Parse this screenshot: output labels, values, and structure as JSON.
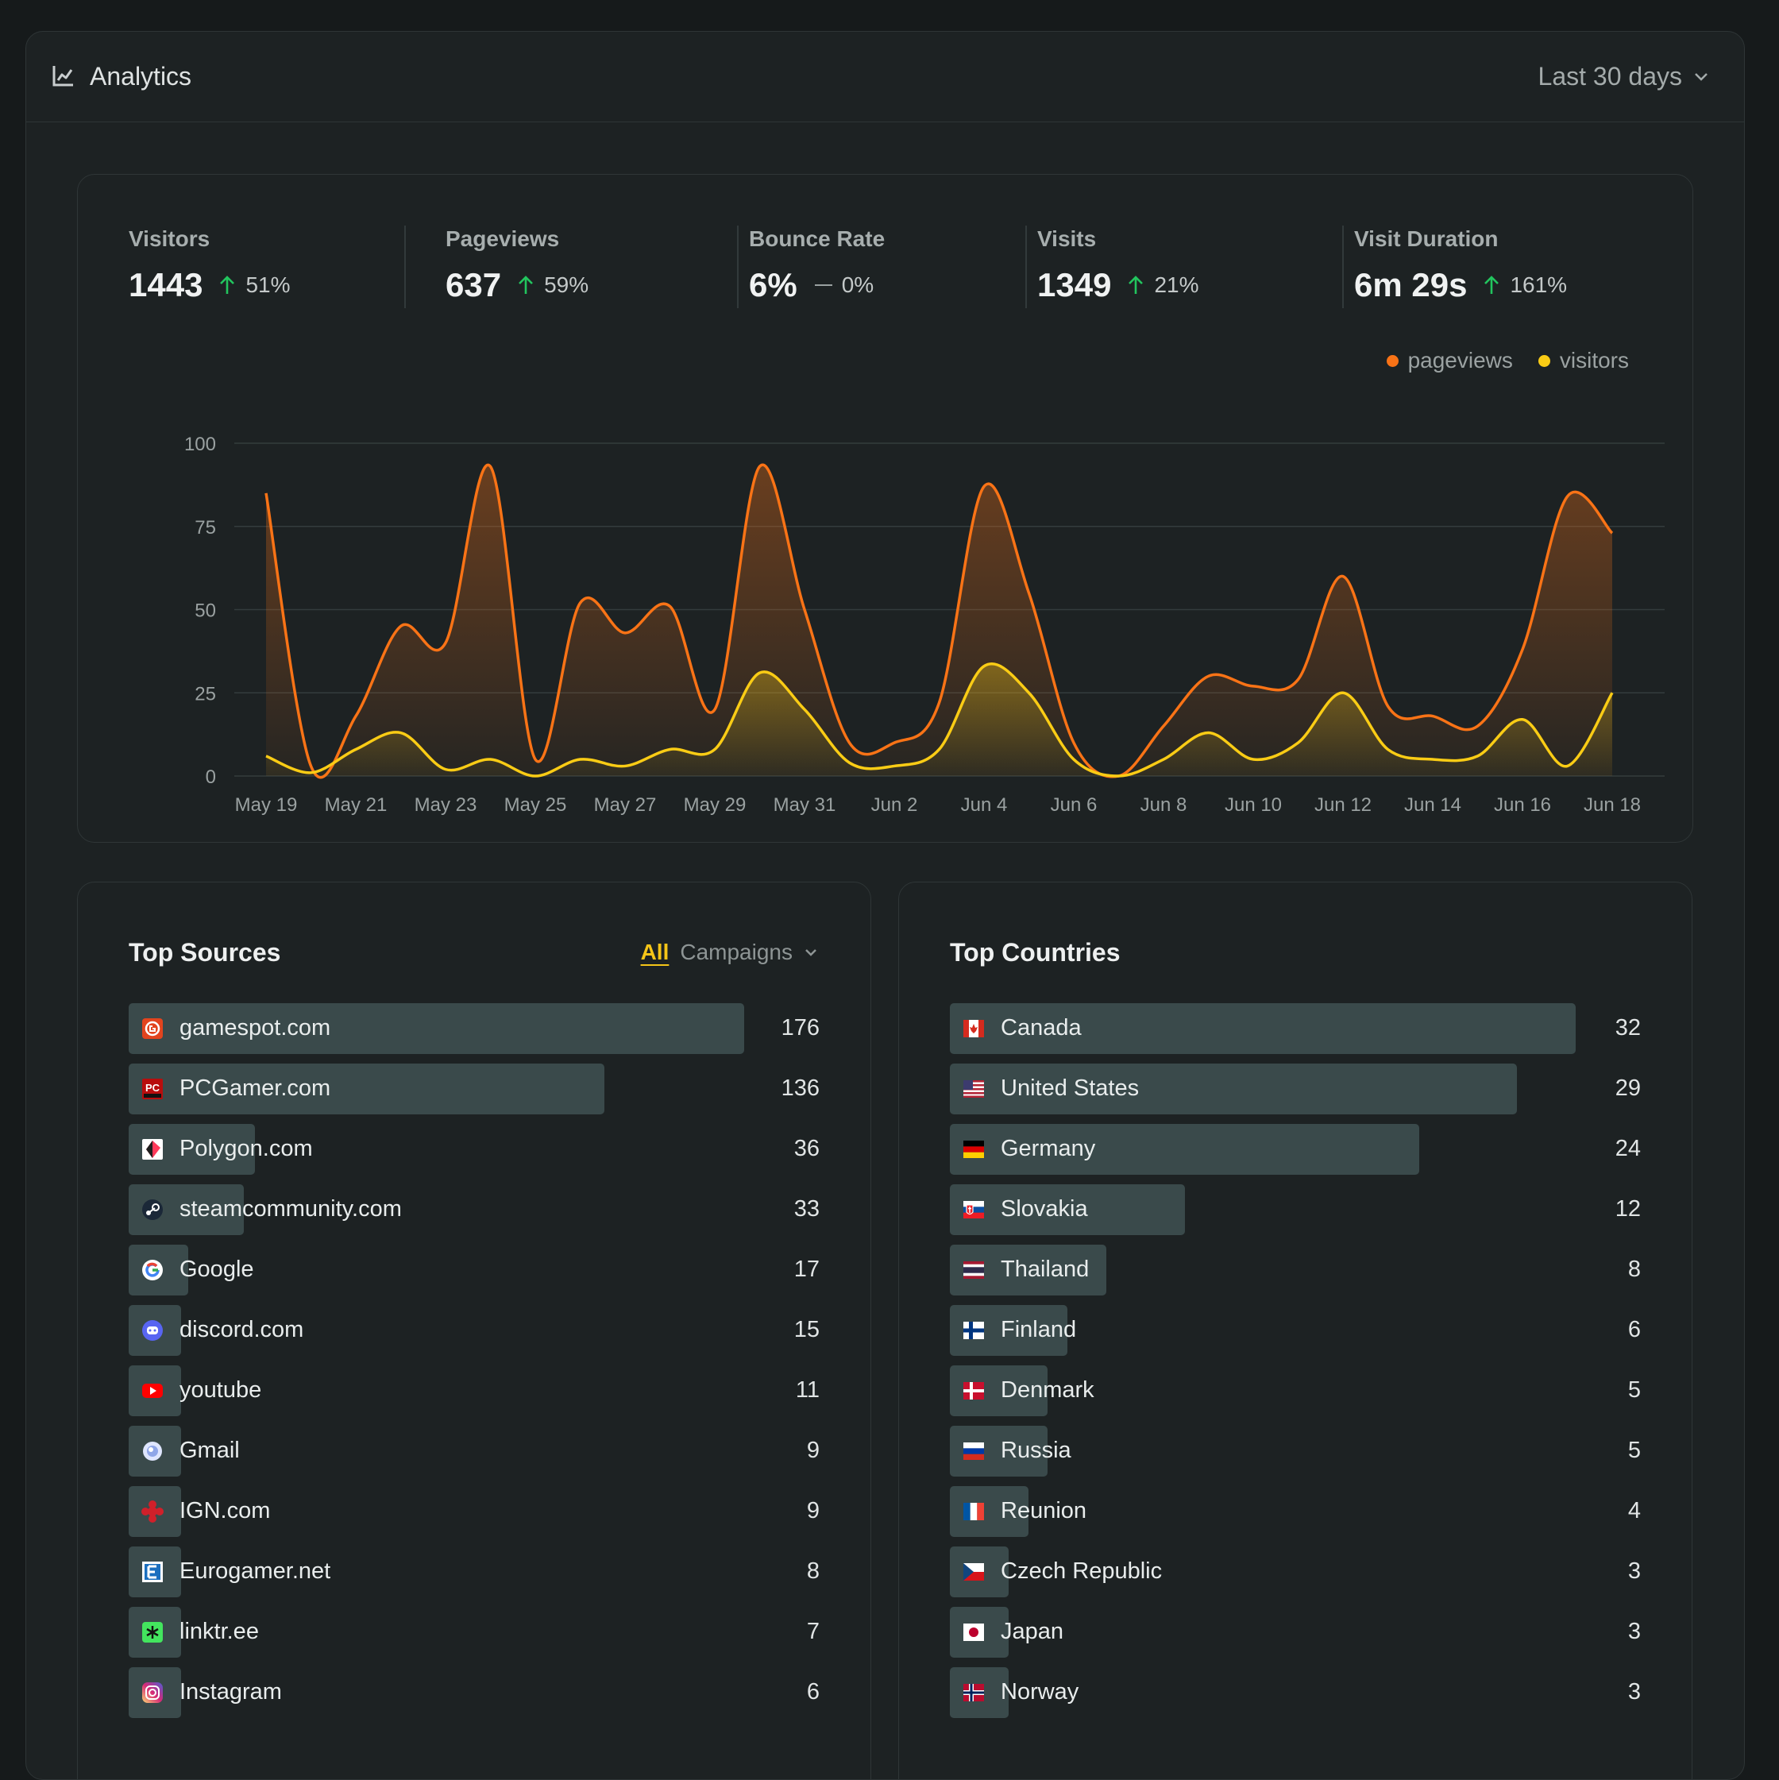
{
  "header": {
    "title": "Analytics",
    "title_icon": "line-chart-icon",
    "range_label": "Last 30 days",
    "range_icon": "chevron-down-icon"
  },
  "stats": [
    {
      "label": "Visitors",
      "value": "1443",
      "change": "51%",
      "trend": "up"
    },
    {
      "label": "Pageviews",
      "value": "637",
      "change": "59%",
      "trend": "up"
    },
    {
      "label": "Bounce Rate",
      "value": "6%",
      "change": "0%",
      "trend": "flat"
    },
    {
      "label": "Visits",
      "value": "1349",
      "change": "21%",
      "trend": "up"
    },
    {
      "label": "Visit Duration",
      "value": "6m 29s",
      "change": "161%",
      "trend": "up"
    }
  ],
  "colors": {
    "pageviews": "#f97316",
    "visitors": "#facc15",
    "trend_up": "#22c55e",
    "bar": "#3a4a4b",
    "accent": "#f5c518"
  },
  "chart_data": {
    "type": "area",
    "x": [
      "May 19",
      "May 20",
      "May 21",
      "May 22",
      "May 23",
      "May 24",
      "May 25",
      "May 26",
      "May 27",
      "May 28",
      "May 29",
      "May 30",
      "May 31",
      "Jun 1",
      "Jun 2",
      "Jun 3",
      "Jun 4",
      "Jun 5",
      "Jun 6",
      "Jun 7",
      "Jun 8",
      "Jun 9",
      "Jun 10",
      "Jun 11",
      "Jun 12",
      "Jun 13",
      "Jun 14",
      "Jun 15",
      "Jun 16",
      "Jun 17",
      "Jun 18"
    ],
    "tick_labels": [
      "May 19",
      "May 21",
      "May 23",
      "May 25",
      "May 27",
      "May 29",
      "May 31",
      "Jun 2",
      "Jun 4",
      "Jun 6",
      "Jun 8",
      "Jun 10",
      "Jun 12",
      "Jun 14",
      "Jun 16",
      "Jun 18"
    ],
    "series": [
      {
        "name": "pageviews",
        "values": [
          85,
          3,
          18,
          45,
          40,
          93,
          5,
          52,
          43,
          51,
          20,
          93,
          50,
          10,
          10,
          22,
          87,
          55,
          10,
          0,
          15,
          30,
          27,
          29,
          60,
          21,
          18,
          15,
          38,
          84,
          73
        ]
      },
      {
        "name": "visitors",
        "values": [
          6,
          1,
          8,
          13,
          2,
          5,
          0,
          5,
          3,
          8,
          8,
          31,
          20,
          4,
          3,
          8,
          33,
          25,
          5,
          0,
          5,
          13,
          5,
          10,
          25,
          8,
          5,
          6,
          17,
          3,
          25
        ]
      }
    ],
    "ylim": [
      0,
      100
    ],
    "yticks": [
      0,
      25,
      50,
      75,
      100
    ],
    "grid": true,
    "legend": "top-right"
  },
  "top_sources": {
    "title": "Top Sources",
    "filter_all": "All",
    "filter_campaigns": "Campaigns",
    "items": [
      {
        "name": "gamespot.com",
        "count": 176,
        "icon": "gamespot-icon"
      },
      {
        "name": "PCGamer.com",
        "count": 136,
        "icon": "pcgamer-icon"
      },
      {
        "name": "Polygon.com",
        "count": 36,
        "icon": "polygon-icon"
      },
      {
        "name": "steamcommunity.com",
        "count": 33,
        "icon": "steam-icon"
      },
      {
        "name": "Google",
        "count": 17,
        "icon": "google-icon"
      },
      {
        "name": "discord.com",
        "count": 15,
        "icon": "discord-icon"
      },
      {
        "name": "youtube",
        "count": 11,
        "icon": "youtube-icon"
      },
      {
        "name": "Gmail",
        "count": 9,
        "icon": "gmail-icon"
      },
      {
        "name": "IGN.com",
        "count": 9,
        "icon": "ign-icon"
      },
      {
        "name": "Eurogamer.net",
        "count": 8,
        "icon": "eurogamer-icon"
      },
      {
        "name": "linktr.ee",
        "count": 7,
        "icon": "linktree-icon"
      },
      {
        "name": "Instagram",
        "count": 6,
        "icon": "instagram-icon"
      }
    ]
  },
  "top_countries": {
    "title": "Top Countries",
    "items": [
      {
        "name": "Canada",
        "count": 32,
        "icon": "canada-flag-icon"
      },
      {
        "name": "United States",
        "count": 29,
        "icon": "usa-flag-icon"
      },
      {
        "name": "Germany",
        "count": 24,
        "icon": "germany-flag-icon"
      },
      {
        "name": "Slovakia",
        "count": 12,
        "icon": "slovakia-flag-icon"
      },
      {
        "name": "Thailand",
        "count": 8,
        "icon": "thailand-flag-icon"
      },
      {
        "name": "Finland",
        "count": 6,
        "icon": "finland-flag-icon"
      },
      {
        "name": "Denmark",
        "count": 5,
        "icon": "denmark-flag-icon"
      },
      {
        "name": "Russia",
        "count": 5,
        "icon": "russia-flag-icon"
      },
      {
        "name": "Reunion",
        "count": 4,
        "icon": "reunion-flag-icon"
      },
      {
        "name": "Czech Republic",
        "count": 3,
        "icon": "czech-flag-icon"
      },
      {
        "name": "Japan",
        "count": 3,
        "icon": "japan-flag-icon"
      },
      {
        "name": "Norway",
        "count": 3,
        "icon": "norway-flag-icon"
      }
    ]
  }
}
